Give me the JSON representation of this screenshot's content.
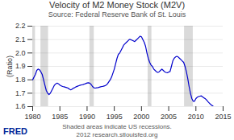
{
  "chart_data": {
    "type": "line",
    "title": "Velocity of M2 Money Stock (M2V)",
    "subtitle": "Source: Federal Reserve Bank of St. Louis",
    "annotations": [
      "Shaded areas indicate US recessions.",
      "2012 research.stlouisfed.org"
    ],
    "logo": "FRED",
    "ylabel": "(Ratio)",
    "xlim": [
      1980,
      2015
    ],
    "ylim": [
      1.6,
      2.2
    ],
    "xticks": [
      1980,
      1985,
      1990,
      1995,
      2000,
      2005,
      2010,
      2015
    ],
    "yticks": [
      1.6,
      1.7,
      1.8,
      1.9,
      {
        "value": 2.0,
        "label": "2.0"
      },
      2.1,
      2.2
    ],
    "grid": true,
    "color": "#0000cc",
    "recessions": [
      [
        1980.0,
        1980.5
      ],
      [
        1981.5,
        1982.9
      ],
      [
        1990.5,
        1991.3
      ],
      [
        2001.2,
        2001.9
      ],
      [
        2007.9,
        2009.5
      ]
    ],
    "x": [
      1980.0,
      1980.25,
      1980.5,
      1980.75,
      1981.0,
      1981.25,
      1981.5,
      1981.75,
      1982.0,
      1982.25,
      1982.5,
      1982.75,
      1983.0,
      1983.25,
      1983.5,
      1983.75,
      1984.0,
      1984.25,
      1984.5,
      1984.75,
      1985.0,
      1985.25,
      1985.5,
      1985.75,
      1986.0,
      1986.25,
      1986.5,
      1986.75,
      1987.0,
      1987.25,
      1987.5,
      1987.75,
      1988.0,
      1988.25,
      1988.5,
      1988.75,
      1989.0,
      1989.25,
      1989.5,
      1989.75,
      1990.0,
      1990.25,
      1990.5,
      1990.75,
      1991.0,
      1991.25,
      1991.5,
      1991.75,
      1992.0,
      1992.25,
      1992.5,
      1992.75,
      1993.0,
      1993.25,
      1993.5,
      1993.75,
      1994.0,
      1994.25,
      1994.5,
      1994.75,
      1995.0,
      1995.25,
      1995.5,
      1995.75,
      1996.0,
      1996.25,
      1996.5,
      1996.75,
      1997.0,
      1997.25,
      1997.5,
      1997.75,
      1998.0,
      1998.25,
      1998.5,
      1998.75,
      1999.0,
      1999.25,
      1999.5,
      1999.75,
      2000.0,
      2000.25,
      2000.5,
      2000.75,
      2001.0,
      2001.25,
      2001.5,
      2001.75,
      2002.0,
      2002.25,
      2002.5,
      2002.75,
      2003.0,
      2003.25,
      2003.5,
      2003.75,
      2004.0,
      2004.25,
      2004.5,
      2004.75,
      2005.0,
      2005.25,
      2005.5,
      2005.75,
      2006.0,
      2006.25,
      2006.5,
      2006.75,
      2007.0,
      2007.25,
      2007.5,
      2007.75,
      2008.0,
      2008.25,
      2008.5,
      2008.75,
      2009.0,
      2009.25,
      2009.5,
      2009.75,
      2010.0,
      2010.25,
      2010.5,
      2010.75,
      2011.0,
      2011.25,
      2011.5,
      2011.75,
      2012.0,
      2012.25,
      2012.5,
      2012.75,
      2013.0,
      2013.25
    ],
    "values": [
      1.8,
      1.82,
      1.84,
      1.87,
      1.88,
      1.875,
      1.86,
      1.84,
      1.8,
      1.76,
      1.72,
      1.7,
      1.69,
      1.7,
      1.72,
      1.74,
      1.76,
      1.77,
      1.775,
      1.77,
      1.76,
      1.755,
      1.75,
      1.748,
      1.745,
      1.742,
      1.738,
      1.73,
      1.725,
      1.73,
      1.738,
      1.742,
      1.748,
      1.752,
      1.756,
      1.76,
      1.762,
      1.764,
      1.768,
      1.772,
      1.776,
      1.778,
      1.775,
      1.765,
      1.75,
      1.74,
      1.738,
      1.74,
      1.742,
      1.745,
      1.748,
      1.75,
      1.752,
      1.755,
      1.76,
      1.77,
      1.785,
      1.8,
      1.82,
      1.85,
      1.88,
      1.92,
      1.96,
      1.99,
      2.0,
      2.02,
      2.04,
      2.06,
      2.07,
      2.08,
      2.09,
      2.1,
      2.1,
      2.095,
      2.09,
      2.085,
      2.095,
      2.105,
      2.115,
      2.125,
      2.12,
      2.1,
      2.08,
      2.05,
      2.0,
      1.96,
      1.93,
      1.91,
      1.9,
      1.88,
      1.87,
      1.86,
      1.855,
      1.86,
      1.87,
      1.88,
      1.87,
      1.86,
      1.855,
      1.852,
      1.858,
      1.862,
      1.9,
      1.94,
      1.96,
      1.97,
      1.975,
      1.97,
      1.96,
      1.95,
      1.94,
      1.93,
      1.9,
      1.86,
      1.81,
      1.75,
      1.7,
      1.66,
      1.64,
      1.64,
      1.66,
      1.67,
      1.675,
      1.678,
      1.68,
      1.672,
      1.665,
      1.658,
      1.648,
      1.635,
      1.625,
      1.615,
      1.608,
      1.6
    ]
  }
}
